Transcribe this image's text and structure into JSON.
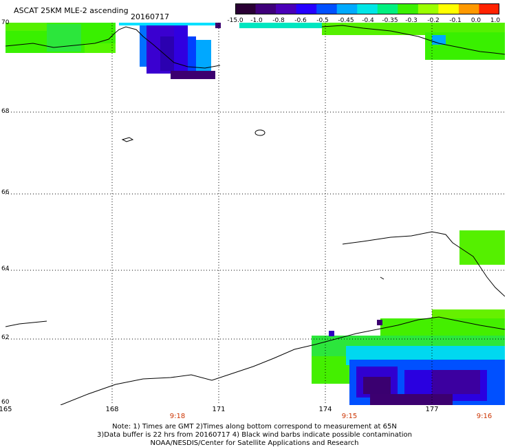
{
  "header": {
    "title": "ASCAT 25KM MLE-2 ascending",
    "date": "20160717"
  },
  "colorbar": {
    "labels": [
      "-15.0",
      "-1.0",
      "-0.8",
      "-0.6",
      "-0.5",
      "-0.45",
      "-0.4",
      "-0.35",
      "-0.3",
      "-0.2",
      "-0.1",
      "0.0",
      "1.0"
    ],
    "colors": [
      "#2a0034",
      "#3f007a",
      "#4a00b8",
      "#2600ff",
      "#0050ff",
      "#00aaff",
      "#00e6e6",
      "#00f080",
      "#3cf000",
      "#9bff00",
      "#ffff00",
      "#ff9900",
      "#ff2200"
    ]
  },
  "map": {
    "lat_labels": [
      "70",
      "68",
      "66",
      "64",
      "62",
      "60"
    ],
    "lon_labels": [
      "165",
      "168",
      "171",
      "174",
      "177"
    ],
    "time_labels": [
      "9:18",
      "9:15",
      "9:16"
    ]
  },
  "notes": {
    "line1": "Note: 1) Times are GMT 2)Times along bottom correspond to measurement at 65N",
    "line2": "3)Data buffer is 22 hrs from 20160717 4) Black wind barbs indicate possible contamination",
    "line3": "NOAA/NESDIS/Center for Satellite Applications and Research"
  },
  "chart_data": {
    "type": "heatmap",
    "title": "ASCAT 25KM MLE-2 ascending",
    "lat_range": [
      60,
      70
    ],
    "lon_range": [
      165,
      179
    ],
    "color_scale": [
      "-15.0",
      "-1.0",
      "-0.8",
      "-0.6",
      "-0.5",
      "-0.45",
      "-0.4",
      "-0.35",
      "-0.3",
      "-0.2",
      "-0.1",
      "0.0",
      "1.0"
    ],
    "grid": "dotted"
  }
}
